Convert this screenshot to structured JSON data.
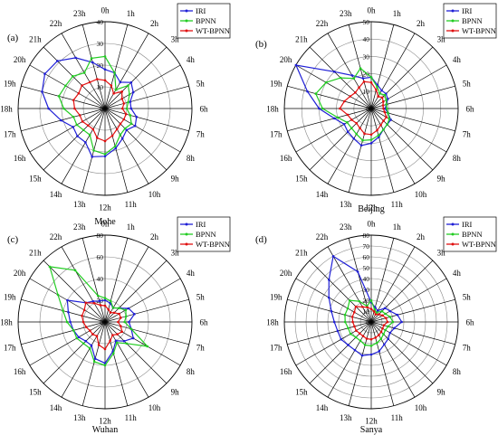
{
  "figure": {
    "hour_labels": [
      "0h",
      "1h",
      "2h",
      "3h",
      "4h",
      "5h",
      "6h",
      "7h",
      "8h",
      "9h",
      "10h",
      "11h",
      "12h",
      "13h",
      "14h",
      "15h",
      "16h",
      "17h",
      "18h",
      "19h",
      "20h",
      "21h",
      "22h",
      "23h"
    ],
    "colors": {
      "IRI": "#1f1fd6",
      "BPNN": "#22cc22",
      "WT-BPNN": "#e01010"
    }
  },
  "chart_data": [
    {
      "type": "radar",
      "panel_label": "(a)",
      "station": "Mohe",
      "categories": [
        "0h",
        "1h",
        "2h",
        "3h",
        "4h",
        "5h",
        "6h",
        "7h",
        "8h",
        "9h",
        "10h",
        "11h",
        "12h",
        "13h",
        "14h",
        "15h",
        "16h",
        "17h",
        "18h",
        "19h",
        "20h",
        "21h",
        "22h",
        "23h"
      ],
      "rlim": [
        0,
        40
      ],
      "rticks": [
        0,
        10,
        20,
        30,
        40
      ],
      "legend": [
        "IRI",
        "BPNN",
        "WT-BPNN"
      ],
      "series": [
        {
          "name": "IRI",
          "values": [
            18,
            17,
            14,
            17,
            15,
            12,
            12,
            15,
            16,
            14,
            16,
            19,
            22,
            23,
            18,
            18,
            17,
            21,
            26,
            30,
            32,
            31,
            27,
            22
          ]
        },
        {
          "name": "BPNN",
          "values": [
            24,
            17,
            10,
            15,
            13,
            11,
            10,
            12,
            14,
            13,
            14,
            18,
            21,
            20,
            14,
            14,
            15,
            15,
            19,
            22,
            21,
            21,
            19,
            24
          ]
        },
        {
          "name": "WT-BPNN",
          "values": [
            13,
            11,
            8,
            11,
            9,
            9,
            8,
            10,
            10,
            10,
            11,
            13,
            15,
            14,
            11,
            11,
            12,
            12,
            14,
            15,
            14,
            15,
            14,
            14
          ]
        }
      ]
    },
    {
      "type": "radar",
      "panel_label": "(b)",
      "station": "Beijing",
      "categories": [
        "0h",
        "1h",
        "2h",
        "3h",
        "4h",
        "5h",
        "6h",
        "7h",
        "8h",
        "9h",
        "10h",
        "11h",
        "12h",
        "13h",
        "14h",
        "15h",
        "16h",
        "17h",
        "18h",
        "19h",
        "20h",
        "21h",
        "22h",
        "23h"
      ],
      "rlim": [
        0,
        50
      ],
      "rticks": [
        0,
        10,
        20,
        30,
        40,
        50
      ],
      "legend": [
        "IRI",
        "BPNN",
        "WT-BPNN"
      ],
      "series": [
        {
          "name": "IRI",
          "values": [
            18,
            14,
            12,
            12,
            11,
            9,
            8,
            10,
            13,
            13,
            14,
            17,
            20,
            22,
            20,
            19,
            18,
            22,
            30,
            38,
            50,
            30,
            22,
            18
          ]
        },
        {
          "name": "BPNN",
          "values": [
            18,
            13,
            10,
            11,
            10,
            9,
            9,
            10,
            12,
            13,
            14,
            16,
            18,
            19,
            17,
            16,
            16,
            20,
            28,
            33,
            30,
            25,
            20,
            24
          ]
        },
        {
          "name": "WT-BPNN",
          "values": [
            15,
            11,
            8,
            9,
            8,
            7,
            7,
            8,
            10,
            10,
            11,
            13,
            15,
            15,
            13,
            12,
            13,
            14,
            18,
            16,
            14,
            13,
            14,
            16
          ]
        }
      ]
    },
    {
      "type": "radar",
      "panel_label": "(c)",
      "station": "Wuhan",
      "categories": [
        "0h",
        "1h",
        "2h",
        "3h",
        "4h",
        "5h",
        "6h",
        "7h",
        "8h",
        "9h",
        "10h",
        "11h",
        "12h",
        "13h",
        "14h",
        "15h",
        "16h",
        "17h",
        "18h",
        "19h",
        "20h",
        "21h",
        "22h",
        "23h"
      ],
      "rlim": [
        0,
        80
      ],
      "rticks": [
        0,
        20,
        40,
        60,
        80
      ],
      "legend": [
        "IRI",
        "BPNN",
        "WT-BPNN"
      ],
      "series": [
        {
          "name": "IRI",
          "values": [
            20,
            18,
            15,
            18,
            25,
            28,
            22,
            25,
            30,
            25,
            20,
            28,
            38,
            35,
            25,
            25,
            28,
            30,
            32,
            35,
            40,
            25,
            22,
            20
          ]
        },
        {
          "name": "BPNN",
          "values": [
            22,
            20,
            15,
            18,
            22,
            20,
            18,
            25,
            45,
            28,
            22,
            30,
            40,
            38,
            28,
            28,
            30,
            30,
            35,
            40,
            50,
            72,
            55,
            25
          ]
        },
        {
          "name": "WT-BPNN",
          "values": [
            15,
            12,
            10,
            12,
            15,
            15,
            12,
            15,
            18,
            16,
            14,
            18,
            25,
            22,
            15,
            16,
            16,
            18,
            20,
            22,
            22,
            25,
            20,
            16
          ]
        }
      ]
    },
    {
      "type": "radar",
      "panel_label": "(d)",
      "station": "Sanya",
      "categories": [
        "0h",
        "1h",
        "2h",
        "3h",
        "4h",
        "5h",
        "6h",
        "7h",
        "8h",
        "9h",
        "10h",
        "11h",
        "12h",
        "13h",
        "14h",
        "15h",
        "16h",
        "17h",
        "18h",
        "19h",
        "20h",
        "21h",
        "22h",
        "23h"
      ],
      "rlim": [
        0,
        80
      ],
      "rticks": [
        0,
        10,
        20,
        30,
        40,
        50,
        60,
        70,
        80
      ],
      "legend": [
        "IRI",
        "BPNN",
        "WT-BPNN"
      ],
      "series": [
        {
          "name": "IRI",
          "values": [
            18,
            14,
            12,
            18,
            20,
            25,
            28,
            22,
            20,
            22,
            24,
            28,
            30,
            32,
            30,
            30,
            32,
            32,
            34,
            38,
            45,
            55,
            70,
            48
          ]
        },
        {
          "name": "BPNN",
          "values": [
            20,
            12,
            10,
            14,
            15,
            18,
            20,
            16,
            15,
            16,
            18,
            20,
            22,
            22,
            20,
            20,
            22,
            22,
            24,
            25,
            25,
            28,
            22,
            15
          ]
        },
        {
          "name": "WT-BPNN",
          "values": [
            12,
            10,
            8,
            10,
            12,
            14,
            15,
            12,
            12,
            13,
            14,
            15,
            16,
            16,
            15,
            15,
            16,
            16,
            17,
            18,
            18,
            20,
            16,
            14
          ]
        }
      ]
    }
  ]
}
